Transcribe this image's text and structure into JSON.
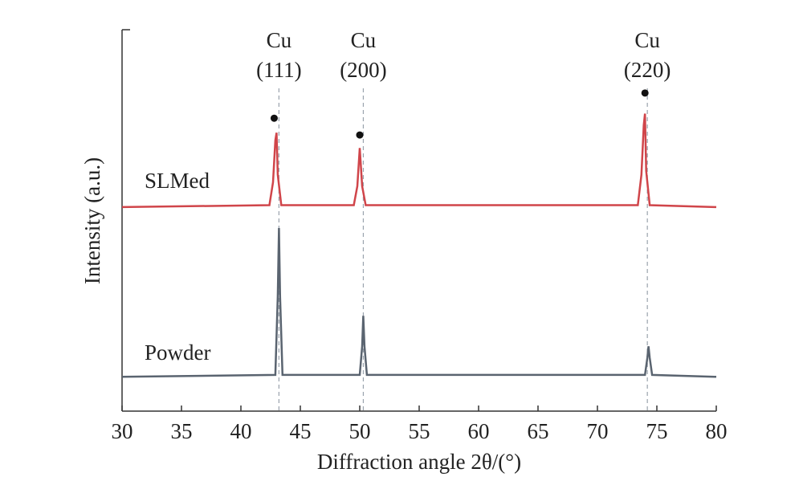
{
  "chart_data": {
    "type": "line",
    "xlabel": "Diffraction angle 2θ/(°)",
    "ylabel": "Intensity (a.u.)",
    "xlim": [
      30,
      80
    ],
    "xticks": [
      30,
      35,
      40,
      45,
      50,
      55,
      60,
      65,
      70,
      75,
      80
    ],
    "ylim": [
      0,
      100
    ],
    "series": [
      {
        "name": "SLMed",
        "color": "#d0454a",
        "x": [
          30,
          42.4,
          42.7,
          42.9,
          43.0,
          43.1,
          43.4,
          49.5,
          49.8,
          50.0,
          50.2,
          50.5,
          73.4,
          73.7,
          73.9,
          74.0,
          74.1,
          74.4,
          80
        ],
        "values": [
          53.5,
          54,
          60,
          71,
          73,
          62,
          54,
          54,
          59,
          69,
          59,
          54,
          54,
          62,
          75,
          78,
          63,
          54,
          53.5
        ]
      },
      {
        "name": "Powder",
        "color": "#5a6470",
        "x": [
          30,
          42.9,
          43.1,
          43.2,
          43.3,
          43.5,
          50.0,
          50.2,
          50.3,
          50.4,
          50.6,
          74.0,
          74.2,
          74.3,
          74.4,
          74.6,
          80
        ],
        "values": [
          9,
          9.5,
          30,
          48,
          30,
          9.5,
          9.5,
          17,
          25,
          17,
          9.5,
          9.5,
          14,
          17,
          14,
          9.5,
          9
        ]
      }
    ],
    "markers": [
      {
        "x": 42.8,
        "y": 76.8
      },
      {
        "x": 50.0,
        "y": 72.4
      },
      {
        "x": 74.0,
        "y": 83.4
      }
    ],
    "reference_lines": [
      43.2,
      50.3,
      74.2
    ],
    "annotations": [
      {
        "text": "Cu",
        "sub": "(111)",
        "x": 43.2
      },
      {
        "text": "Cu",
        "sub": "(200)",
        "x": 50.3
      },
      {
        "text": "Cu",
        "sub": "(220)",
        "x": 74.2
      }
    ]
  }
}
